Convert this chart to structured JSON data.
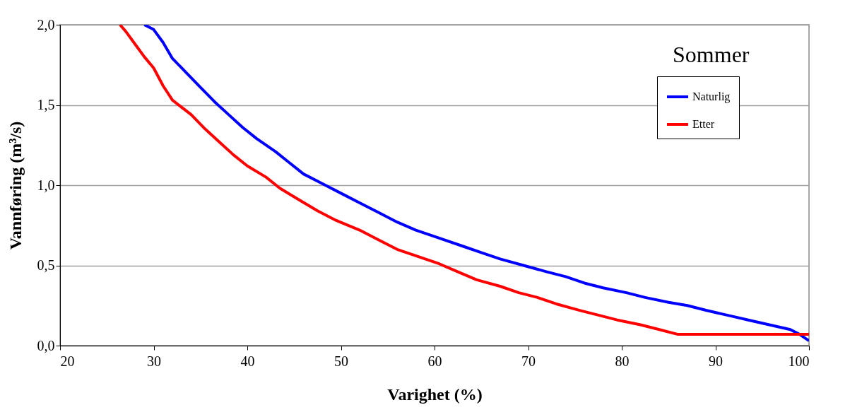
{
  "chart_data": {
    "type": "line",
    "title": "Sommer",
    "xlabel": "Varighet (%)",
    "ylabel": "Vannføring (m³/s)",
    "xlim": [
      20,
      100
    ],
    "xticks": [
      20,
      30,
      40,
      50,
      60,
      70,
      80,
      90,
      100
    ],
    "ylim": [
      0,
      2
    ],
    "yticks": [
      {
        "value": 0,
        "label": "0,0"
      },
      {
        "value": 0.5,
        "label": "0,5"
      },
      {
        "value": 1,
        "label": "1,0"
      },
      {
        "value": 1.5,
        "label": "1,5"
      },
      {
        "value": 2,
        "label": "2,0"
      }
    ],
    "grid": "y",
    "legend": "top right",
    "marker": "none",
    "line_style": "solid",
    "series": [
      {
        "name": "Naturlig",
        "color": "#0000ff",
        "x": [
          29,
          30,
          31,
          32,
          33.5,
          35,
          36.5,
          38,
          39.5,
          41,
          43,
          44.5,
          46,
          48,
          50,
          52,
          54,
          56,
          58,
          60.5,
          63,
          65,
          67,
          69.5,
          72,
          74,
          76,
          78,
          80.5,
          82.5,
          85,
          87,
          89,
          90.5,
          92,
          93.5,
          95,
          96.5,
          98,
          99,
          100
        ],
        "values": [
          2.0,
          1.97,
          1.89,
          1.79,
          1.7,
          1.61,
          1.52,
          1.44,
          1.36,
          1.29,
          1.21,
          1.14,
          1.07,
          1.01,
          0.95,
          0.89,
          0.83,
          0.77,
          0.72,
          0.67,
          0.62,
          0.58,
          0.54,
          0.5,
          0.46,
          0.43,
          0.39,
          0.36,
          0.33,
          0.3,
          0.27,
          0.25,
          0.22,
          0.2,
          0.18,
          0.16,
          0.14,
          0.12,
          0.1,
          0.07,
          0.03
        ]
      },
      {
        "name": "Etter",
        "color": "#ff0000",
        "x": [
          26.4,
          27,
          28,
          29,
          30,
          31,
          32,
          34,
          35.5,
          37,
          38.5,
          40,
          42,
          43.5,
          45.5,
          47.5,
          49.5,
          52,
          54,
          56,
          58.5,
          60.5,
          62.5,
          64.5,
          67,
          69,
          71,
          73,
          75.5,
          77.5,
          79.5,
          82,
          84,
          86,
          100
        ],
        "values": [
          2.0,
          1.96,
          1.88,
          1.8,
          1.73,
          1.62,
          1.53,
          1.44,
          1.35,
          1.27,
          1.19,
          1.12,
          1.05,
          0.98,
          0.91,
          0.84,
          0.78,
          0.72,
          0.66,
          0.6,
          0.55,
          0.51,
          0.46,
          0.41,
          0.37,
          0.33,
          0.3,
          0.26,
          0.22,
          0.19,
          0.16,
          0.13,
          0.1,
          0.07,
          0.07
        ]
      }
    ]
  }
}
